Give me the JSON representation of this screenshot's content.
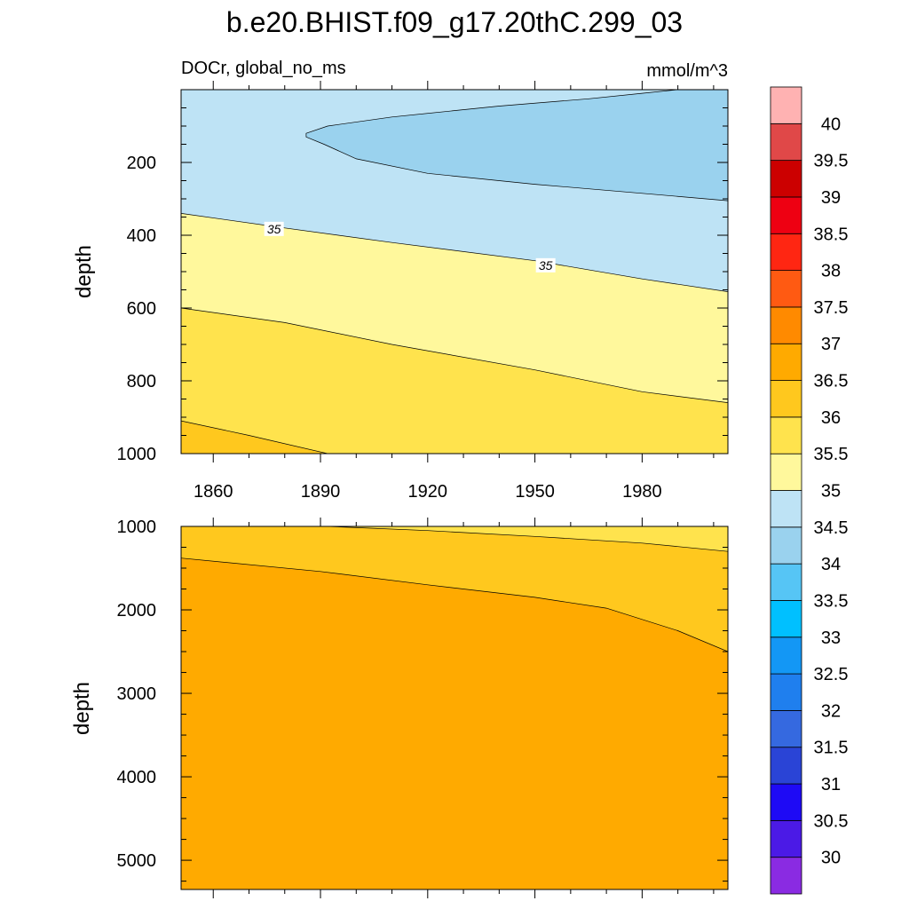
{
  "chart_data": {
    "type": "contour",
    "title": "b.e20.BHIST.f09_g17.20thC.299_03",
    "variable_label": "DOCr, global_no_ms",
    "units": "mmol/m^3",
    "x_ticks": [
      "1860",
      "1890",
      "1920",
      "1950",
      "1980"
    ],
    "x_tick_values": [
      1860,
      1890,
      1920,
      1950,
      1980
    ],
    "xlim": [
      1851,
      2004
    ],
    "upper_panel": {
      "ylabel": "depth",
      "ylim": [
        0,
        1000
      ],
      "y_ticks": [
        "200",
        "400",
        "600",
        "800",
        "1000"
      ],
      "y_tick_values": [
        200,
        400,
        600,
        800,
        1000
      ],
      "contour_labels": [
        {
          "text": "35",
          "year": 1877,
          "depth": 385
        },
        {
          "text": "35",
          "year": 1953,
          "depth": 485
        }
      ],
      "contours": [
        {
          "level": 34.5,
          "type": "closed",
          "points": [
            [
              1886,
              120
            ],
            [
              1892,
              100
            ],
            [
              1910,
              75
            ],
            [
              1940,
              45
            ],
            [
              1965,
              25
            ],
            [
              1980,
              10
            ],
            [
              1990,
              0
            ],
            [
              2004,
              0
            ],
            [
              2004,
              305
            ],
            [
              1980,
              285
            ],
            [
              1950,
              260
            ],
            [
              1920,
              230
            ],
            [
              1900,
              190
            ],
            [
              1891,
              150
            ],
            [
              1886,
              130
            ]
          ]
        },
        {
          "level": 35.0,
          "points": [
            [
              1851,
              340
            ],
            [
              1880,
              380
            ],
            [
              1910,
              420
            ],
            [
              1950,
              470
            ],
            [
              1980,
              520
            ],
            [
              2004,
              555
            ]
          ]
        },
        {
          "level": 35.5,
          "points": [
            [
              1851,
              600
            ],
            [
              1880,
              640
            ],
            [
              1910,
              700
            ],
            [
              1950,
              770
            ],
            [
              1980,
              830
            ],
            [
              2004,
              860
            ]
          ]
        },
        {
          "level": 36.0,
          "points": [
            [
              1851,
              910
            ],
            [
              1870,
              950
            ],
            [
              1892,
              1000
            ]
          ]
        }
      ]
    },
    "lower_panel": {
      "ylabel": "depth",
      "ylim": [
        1000,
        5350
      ],
      "y_ticks": [
        "1000",
        "2000",
        "3000",
        "4000",
        "5000"
      ],
      "y_tick_values": [
        1000,
        2000,
        3000,
        4000,
        5000
      ],
      "contours": [
        {
          "level": 36.0,
          "points": [
            [
              1892,
              1000
            ],
            [
              1920,
              1050
            ],
            [
              1950,
              1120
            ],
            [
              1980,
              1200
            ],
            [
              2004,
              1300
            ]
          ]
        },
        {
          "level": 36.5,
          "points": [
            [
              1851,
              1380
            ],
            [
              1890,
              1540
            ],
            [
              1920,
              1700
            ],
            [
              1950,
              1850
            ],
            [
              1970,
              1980
            ],
            [
              1990,
              2250
            ],
            [
              2004,
              2500
            ]
          ]
        }
      ]
    },
    "colorbar": {
      "levels": [
        "30",
        "30.5",
        "31",
        "31.5",
        "32",
        "32.5",
        "33",
        "33.5",
        "34",
        "34.5",
        "35",
        "35.5",
        "36",
        "36.5",
        "37",
        "37.5",
        "38",
        "38.5",
        "39",
        "39.5",
        "40"
      ],
      "colors": [
        "#8A2BE2",
        "#4B1AE6",
        "#1E0AF5",
        "#2A44D6",
        "#3569E0",
        "#1F7FEE",
        "#1397F5",
        "#00C0FF",
        "#56C5F5",
        "#9AD2EE",
        "#BEE3F5",
        "#FFF89C",
        "#FFE34D",
        "#FFC81E",
        "#FFAA00",
        "#FF8A00",
        "#FF5A12",
        "#FF2612",
        "#EE0012",
        "#CC0000",
        "#E04848",
        "#FFB2B2"
      ]
    }
  }
}
